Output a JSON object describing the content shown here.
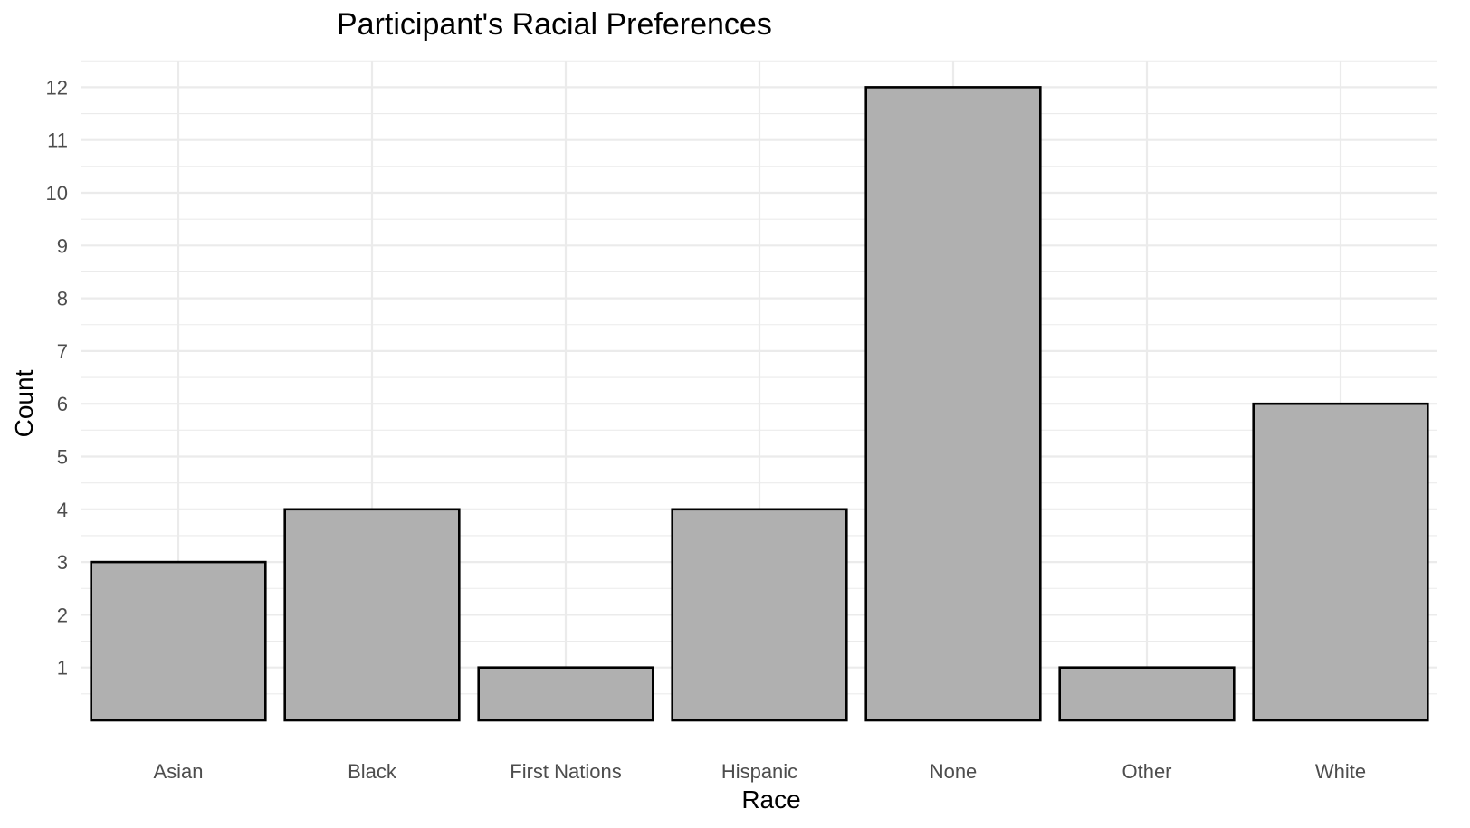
{
  "chart_data": {
    "type": "bar",
    "title": "Participant's Racial Preferences",
    "xlabel": "Race",
    "ylabel": "Count",
    "categories": [
      "Asian",
      "Black",
      "First Nations",
      "Hispanic",
      "None",
      "Other",
      "White"
    ],
    "values": [
      3,
      4,
      1,
      4,
      12,
      1,
      6
    ],
    "y_ticks": [
      "1",
      "2",
      "3",
      "4",
      "5",
      "6",
      "7",
      "8",
      "9",
      "10",
      "11",
      "12"
    ],
    "ylim": [
      0,
      12.5
    ],
    "grid": true,
    "legend": "none",
    "colors": {
      "bar_fill": "#b0b0b0",
      "bar_stroke": "#000000",
      "grid": "#ebebeb",
      "tick_text": "#4d4d4d"
    }
  }
}
